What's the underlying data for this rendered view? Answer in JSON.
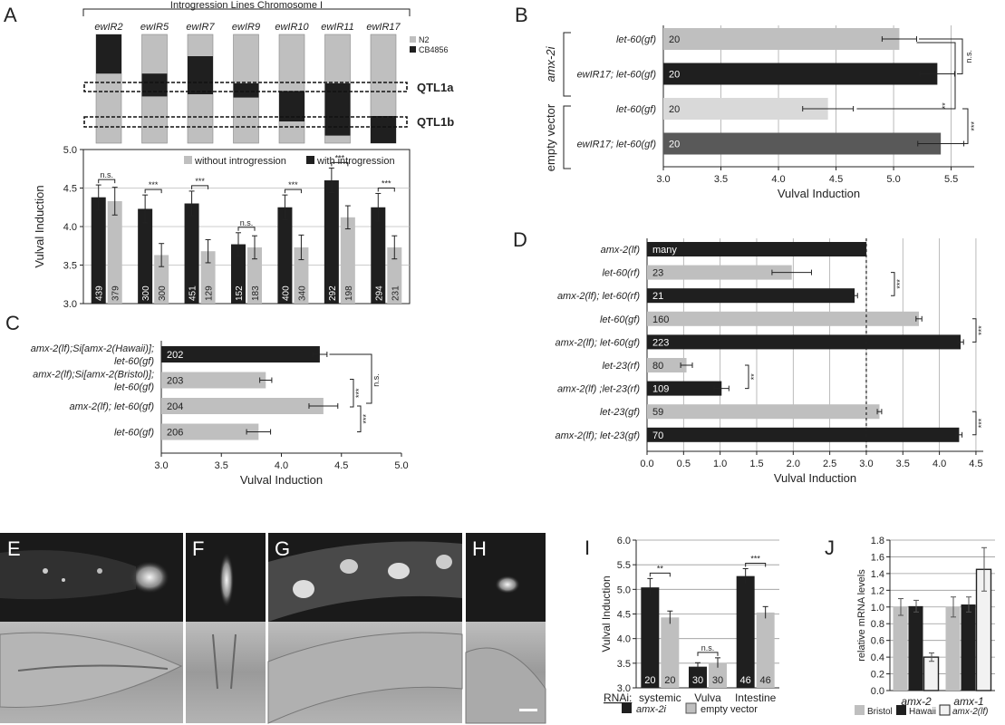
{
  "panels": {
    "A": "A",
    "B": "B",
    "C": "C",
    "D": "D",
    "E": "E",
    "F": "F",
    "G": "G",
    "H": "H",
    "I": "I",
    "J": "J"
  },
  "introgression": {
    "header": "Introgression Lines Chromosome I",
    "lines": [
      "ewIR2",
      "ewIR5",
      "ewIR7",
      "ewIR9",
      "ewIR10",
      "ewIR11",
      "ewIR17"
    ],
    "black_fraction_ranges": [
      [
        0,
        0.36
      ],
      [
        0.36,
        0.57
      ],
      [
        0.2,
        0.55
      ],
      [
        0.45,
        0.58
      ],
      [
        0.52,
        0.8
      ],
      [
        0.45,
        0.93
      ],
      [
        0.75,
        1.0
      ]
    ],
    "legend": [
      "N2",
      "CB4856"
    ],
    "colors": {
      "n2": "#bfbfbf",
      "cb4856": "#1f1f1f"
    },
    "qtl_labels": [
      "QTL1a",
      "QTL1b"
    ]
  },
  "chart_data": [
    {
      "panel": "A",
      "type": "bar",
      "ylabel": "Vulval Induction",
      "ylim": [
        3.0,
        5.0
      ],
      "yticks": [
        "3.0",
        "3.5",
        "4.0",
        "4.5",
        "5.0"
      ],
      "legend": [
        "without introgression",
        "with introgression"
      ],
      "groups": [
        "ewIR2",
        "ewIR5",
        "ewIR7",
        "ewIR9",
        "ewIR10",
        "ewIR11",
        "ewIR17"
      ],
      "with_values": [
        4.38,
        4.23,
        4.3,
        3.77,
        4.25,
        4.6,
        4.25
      ],
      "with_errors": [
        0.16,
        0.18,
        0.16,
        0.15,
        0.16,
        0.16,
        0.18
      ],
      "with_n": [
        "439",
        "300",
        "451",
        "152",
        "400",
        "292",
        "294"
      ],
      "without_values": [
        4.33,
        3.63,
        3.68,
        3.73,
        3.73,
        4.12,
        3.73
      ],
      "without_errors": [
        0.18,
        0.15,
        0.15,
        0.15,
        0.16,
        0.15,
        0.15
      ],
      "without_n": [
        "379",
        "300",
        "129",
        "183",
        "340",
        "198",
        "231"
      ],
      "significance": [
        "n.s.",
        "***",
        "***",
        "n.s.",
        "***",
        "***",
        "***"
      ]
    },
    {
      "panel": "B",
      "type": "bar",
      "orientation": "horizontal",
      "xlabel": "Vulval Induction",
      "xlim": [
        3.0,
        5.7
      ],
      "xticks": [
        "3.0",
        "3.5",
        "4.0",
        "4.5",
        "5.0",
        "5.5"
      ],
      "group_labels": [
        "amx-2i",
        "empty vector"
      ],
      "categories": [
        "let-60(gf)",
        "ewIR17; let-60(gf)",
        "let-60(gf)",
        "ewIR17; let-60(gf)"
      ],
      "values": [
        5.05,
        5.38,
        4.43,
        5.41
      ],
      "errors": [
        0.15,
        0.15,
        0.22,
        0.2
      ],
      "n": [
        "20",
        "20",
        "20",
        "20"
      ],
      "colors": [
        "#bfbfbf",
        "#1f1f1f",
        "#d9d9d9",
        "#595959"
      ],
      "significance": [
        "n.s.",
        "**",
        "***"
      ]
    },
    {
      "panel": "C",
      "type": "bar",
      "orientation": "horizontal",
      "xlabel": "Vulval Induction",
      "xlim": [
        3.0,
        5.0
      ],
      "xticks": [
        "3.0",
        "3.5",
        "4.0",
        "4.5",
        "5.0"
      ],
      "categories": [
        [
          "amx-2(lf);Si[amx-2(Hawaii)];",
          "let-60(gf)"
        ],
        [
          "amx-2(lf);Si[amx-2(Bristol)];",
          "let-60(gf)"
        ],
        [
          "amx-2(lf); let-60(gf)"
        ],
        [
          "let-60(gf)"
        ]
      ],
      "values": [
        4.32,
        3.87,
        4.35,
        3.81
      ],
      "errors": [
        0.06,
        0.05,
        0.12,
        0.1
      ],
      "n": [
        "202",
        "203",
        "204",
        "206"
      ],
      "colors": [
        "#1f1f1f",
        "#bfbfbf",
        "#bfbfbf",
        "#bfbfbf"
      ],
      "significance": [
        "n.s.",
        "***",
        "***"
      ]
    },
    {
      "panel": "D",
      "type": "bar",
      "orientation": "horizontal",
      "xlabel": "Vulval Induction",
      "xlim": [
        0.0,
        4.6
      ],
      "xticks": [
        "0.0",
        "0.5",
        "1.0",
        "1.5",
        "2.0",
        "2.5",
        "3.0",
        "3.5",
        "4.0",
        "4.5"
      ],
      "categories": [
        "amx-2(lf)",
        "let-60(rf)",
        "amx-2(lf); let-60(rf)",
        "let-60(gf)",
        "amx-2(lf); let-60(gf)",
        "let-23(rf)",
        "amx-2(lf) ;let-23(rf)",
        "let-23(gf)",
        "amx-2(lf); let-23(gf)"
      ],
      "values": [
        3.0,
        1.98,
        2.84,
        3.72,
        4.29,
        0.54,
        1.02,
        3.18,
        4.27
      ],
      "errors": [
        0,
        0.27,
        0.04,
        0.04,
        0.04,
        0.08,
        0.1,
        0.03,
        0.04
      ],
      "n": [
        "many",
        "23",
        "21",
        "160",
        "223",
        "80",
        "109",
        "59",
        "70"
      ],
      "colors": [
        "#1f1f1f",
        "#bfbfbf",
        "#1f1f1f",
        "#bfbfbf",
        "#1f1f1f",
        "#bfbfbf",
        "#1f1f1f",
        "#bfbfbf",
        "#1f1f1f"
      ],
      "reference_line": 3.0,
      "significance": [
        "***",
        "***",
        "**",
        "***"
      ]
    },
    {
      "panel": "I",
      "type": "bar",
      "ylabel": "Vulval Induction",
      "ylim": [
        3.0,
        6.0
      ],
      "yticks": [
        "3.0",
        "3.5",
        "4.0",
        "4.5",
        "5.0",
        "5.5",
        "6.0"
      ],
      "rnai_label": "RNAi:",
      "categories": [
        "systemic",
        "Vulva",
        "Intestine"
      ],
      "series": [
        {
          "name": "amx-2i",
          "values": [
            5.04,
            3.43,
            5.27
          ],
          "errors": [
            0.18,
            0.08,
            0.15
          ],
          "n": [
            "20",
            "30",
            "46"
          ],
          "color": "#1f1f1f"
        },
        {
          "name": "empty vector",
          "values": [
            4.43,
            3.51,
            4.53
          ],
          "errors": [
            0.13,
            0.1,
            0.12
          ],
          "n": [
            "20",
            "30",
            "46"
          ],
          "color": "#bfbfbf"
        }
      ],
      "significance": [
        "**",
        "n.s.",
        "***"
      ]
    },
    {
      "panel": "J",
      "type": "bar",
      "ylabel": "relative mRNA levels",
      "ylim": [
        0.0,
        1.8
      ],
      "yticks": [
        "0.0",
        "0.2",
        "0.4",
        "0.6",
        "0.8",
        "1.0",
        "1.2",
        "1.4",
        "1.6",
        "1.8"
      ],
      "categories": [
        "amx-2",
        "amx-1"
      ],
      "series": [
        {
          "name": "Bristol",
          "values": [
            1.0,
            1.0
          ],
          "errors": [
            0.1,
            0.12
          ],
          "color": "#bfbfbf"
        },
        {
          "name": "Hawaii",
          "values": [
            1.01,
            1.03
          ],
          "errors": [
            0.07,
            0.09
          ],
          "color": "#1f1f1f"
        },
        {
          "name": "amx-2(lf)",
          "values": [
            0.4,
            1.45
          ],
          "errors": [
            0.05,
            0.26
          ],
          "color": "#f2f2f2"
        }
      ]
    }
  ],
  "micrographs": {
    "scale_bar": true,
    "fluorescence_bg": "#1a1a1a",
    "dic_bg": "#9a9a9a"
  }
}
